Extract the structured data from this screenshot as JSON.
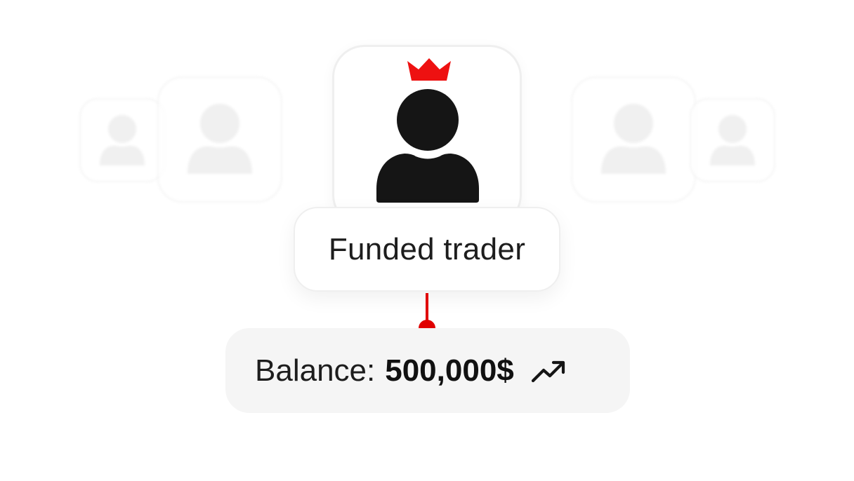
{
  "role": {
    "label": "Funded trader",
    "icon": "crowned-user-icon"
  },
  "balance": {
    "label": "Balance:",
    "value": "500,000$",
    "trend_icon": "trending-up-icon"
  },
  "background_users": [
    "user-icon",
    "user-icon",
    "user-icon",
    "user-icon"
  ],
  "colors": {
    "accent": "#e00000",
    "text": "#1d1d1d",
    "placeholder": "#ececec",
    "pill_bg": "#f5f5f5"
  }
}
